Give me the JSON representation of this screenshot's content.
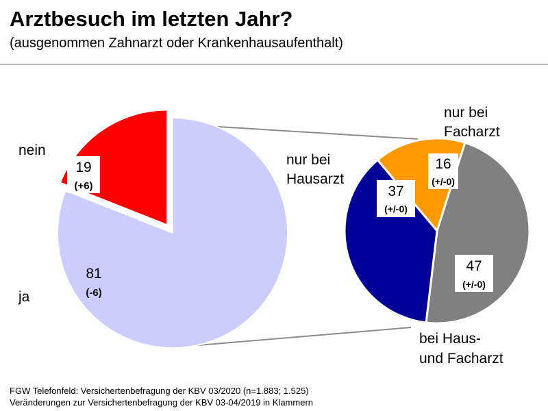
{
  "header": {
    "title": "Arztbesuch im letzten Jahr?",
    "subtitle": "(ausgenommen Zahnarzt oder Krankenhausaufenthalt)"
  },
  "chart_data": [
    {
      "type": "pie",
      "slices": [
        {
          "label": "nein",
          "value": 19,
          "change": "(+6)",
          "color": "#ff0000",
          "exploded": true
        },
        {
          "label": "ja",
          "value": 81,
          "change": "(-6)",
          "color": "#ccccff",
          "exploded": false
        }
      ]
    },
    {
      "type": "pie",
      "label_line1": [
        "nur bei",
        "nur bei",
        "bei Haus-"
      ],
      "slices": [
        {
          "label": "nur bei Facharzt",
          "line1": "nur bei",
          "line2": "Facharzt",
          "value": 16,
          "change": "(+/-0)",
          "color": "#ff9900"
        },
        {
          "label": "bei Haus- und Facharzt",
          "line1": "bei Haus-",
          "line2": "und Facharzt",
          "value": 47,
          "change": "(+/-0)",
          "color": "#808080"
        },
        {
          "label": "nur bei Hausarzt",
          "line1": "nur bei",
          "line2": "Hausarzt",
          "value": 37,
          "change": "(+/-0)",
          "color": "#000099"
        }
      ]
    }
  ],
  "footnotes": [
    "FGW Telefonfeld: Versichertenbefragung der KBV 03/2020 (n=1.883; 1.525)",
    "Veränderungen zur Versichertenbefragung der KBV 03-04/2019 in Klammern"
  ]
}
